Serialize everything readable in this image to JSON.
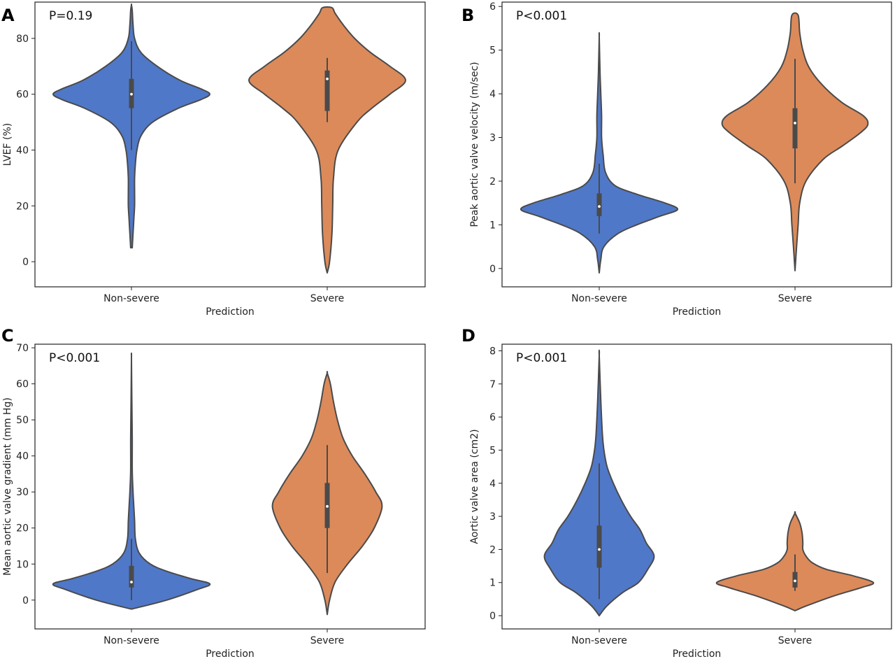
{
  "colors": {
    "non_severe": "#5078C8",
    "severe": "#DC8A5A",
    "edge": "#4A4A4A"
  },
  "chart_data": [
    {
      "type": "violin",
      "panel": "A",
      "pvalue": "P=0.19",
      "xlabel": "Prediction",
      "ylabel": "LVEF (%)",
      "ylim": [
        -9,
        93
      ],
      "yticks": [
        0,
        20,
        40,
        60,
        80
      ],
      "categories": [
        "Non-severe",
        "Severe"
      ],
      "series": [
        {
          "category": "Non-severe",
          "min": 5,
          "q1": 55,
          "median": 60,
          "q3": 65.5,
          "max": 92,
          "whisker_low": 40,
          "whisker_high": 79,
          "density": [
            [
              5,
              0.01
            ],
            [
              10,
              0.02
            ],
            [
              15,
              0.03
            ],
            [
              20,
              0.04
            ],
            [
              25,
              0.04
            ],
            [
              30,
              0.04
            ],
            [
              35,
              0.05
            ],
            [
              40,
              0.07
            ],
            [
              45,
              0.12
            ],
            [
              50,
              0.27
            ],
            [
              55,
              0.6
            ],
            [
              58,
              0.88
            ],
            [
              60,
              1.0
            ],
            [
              62,
              0.88
            ],
            [
              65,
              0.62
            ],
            [
              70,
              0.33
            ],
            [
              75,
              0.12
            ],
            [
              80,
              0.04
            ],
            [
              85,
              0.02
            ],
            [
              90,
              0.01
            ],
            [
              92,
              0.0
            ]
          ]
        },
        {
          "category": "Severe",
          "min": -4,
          "q1": 54,
          "median": 65.5,
          "q3": 68.5,
          "max": 91,
          "whisker_low": 50,
          "whisker_high": 73,
          "density": [
            [
              -4,
              0.0
            ],
            [
              0,
              0.03
            ],
            [
              10,
              0.06
            ],
            [
              20,
              0.07
            ],
            [
              30,
              0.08
            ],
            [
              40,
              0.14
            ],
            [
              50,
              0.38
            ],
            [
              55,
              0.57
            ],
            [
              60,
              0.8
            ],
            [
              65,
              1.0
            ],
            [
              70,
              0.8
            ],
            [
              75,
              0.55
            ],
            [
              80,
              0.35
            ],
            [
              85,
              0.2
            ],
            [
              89,
              0.1
            ],
            [
              91,
              0.06
            ]
          ]
        }
      ]
    },
    {
      "type": "violin",
      "panel": "B",
      "pvalue": "P<0.001",
      "xlabel": "Prediction",
      "ylabel": "Peak aortic valve velocity (m/sec)",
      "ylim": [
        -0.42,
        6.1
      ],
      "yticks": [
        0,
        1,
        2,
        3,
        4,
        5,
        6
      ],
      "categories": [
        "Non-severe",
        "Severe"
      ],
      "series": [
        {
          "category": "Non-severe",
          "min": -0.1,
          "q1": 1.2,
          "median": 1.42,
          "q3": 1.72,
          "max": 5.3,
          "whisker_low": 0.8,
          "whisker_high": 2.4,
          "density": [
            [
              -0.1,
              0.0
            ],
            [
              0.2,
              0.02
            ],
            [
              0.5,
              0.06
            ],
            [
              0.8,
              0.24
            ],
            [
              1.0,
              0.48
            ],
            [
              1.2,
              0.78
            ],
            [
              1.35,
              1.0
            ],
            [
              1.5,
              0.84
            ],
            [
              1.7,
              0.48
            ],
            [
              1.9,
              0.2
            ],
            [
              2.2,
              0.08
            ],
            [
              2.6,
              0.05
            ],
            [
              3.0,
              0.03
            ],
            [
              3.5,
              0.03
            ],
            [
              4.0,
              0.02
            ],
            [
              4.5,
              0.01
            ],
            [
              5.3,
              0.0
            ]
          ]
        },
        {
          "category": "Severe",
          "min": -0.05,
          "q1": 2.75,
          "median": 3.33,
          "q3": 3.67,
          "max": 5.8,
          "whisker_low": 1.95,
          "whisker_high": 4.8,
          "density": [
            [
              -0.05,
              0.0
            ],
            [
              0.5,
              0.02
            ],
            [
              1.0,
              0.04
            ],
            [
              1.5,
              0.06
            ],
            [
              2.0,
              0.14
            ],
            [
              2.5,
              0.36
            ],
            [
              2.8,
              0.6
            ],
            [
              3.1,
              0.83
            ],
            [
              3.3,
              0.93
            ],
            [
              3.5,
              0.87
            ],
            [
              3.8,
              0.6
            ],
            [
              4.2,
              0.35
            ],
            [
              4.6,
              0.18
            ],
            [
              5.0,
              0.1
            ],
            [
              5.4,
              0.06
            ],
            [
              5.8,
              0.04
            ]
          ]
        }
      ]
    },
    {
      "type": "violin",
      "panel": "C",
      "pvalue": "P<0.001",
      "xlabel": "Prediction",
      "ylabel": "Mean aortic valve gradient (mm Hg)",
      "ylim": [
        -8,
        71
      ],
      "yticks": [
        0,
        10,
        20,
        30,
        40,
        50,
        60,
        70
      ],
      "categories": [
        "Non-severe",
        "Severe"
      ],
      "series": [
        {
          "category": "Non-severe",
          "min": -2.5,
          "q1": 3.5,
          "median": 5,
          "q3": 9.5,
          "max": 67,
          "whisker_low": 0,
          "whisker_high": 17,
          "density": [
            [
              -2.5,
              0.0
            ],
            [
              0,
              0.45
            ],
            [
              3,
              0.85
            ],
            [
              4.5,
              1.0
            ],
            [
              6,
              0.75
            ],
            [
              8,
              0.45
            ],
            [
              10,
              0.24
            ],
            [
              13,
              0.1
            ],
            [
              17,
              0.05
            ],
            [
              22,
              0.04
            ],
            [
              26,
              0.03
            ],
            [
              30,
              0.02
            ],
            [
              36,
              0.01
            ],
            [
              45,
              0.01
            ],
            [
              55,
              0.005
            ],
            [
              67,
              0.0
            ]
          ]
        },
        {
          "category": "Severe",
          "min": -4,
          "q1": 20,
          "median": 26,
          "q3": 32.5,
          "max": 63,
          "whisker_low": 7.5,
          "whisker_high": 43,
          "density": [
            [
              -4,
              0.0
            ],
            [
              0,
              0.03
            ],
            [
              5,
              0.1
            ],
            [
              10,
              0.26
            ],
            [
              15,
              0.45
            ],
            [
              20,
              0.6
            ],
            [
              26,
              0.7
            ],
            [
              30,
              0.62
            ],
            [
              35,
              0.48
            ],
            [
              40,
              0.32
            ],
            [
              45,
              0.2
            ],
            [
              50,
              0.13
            ],
            [
              55,
              0.08
            ],
            [
              60,
              0.04
            ],
            [
              63,
              0.0
            ]
          ]
        }
      ]
    },
    {
      "type": "violin",
      "panel": "D",
      "pvalue": "P<0.001",
      "xlabel": "Prediction",
      "ylabel": "Aortic valve area (cm2)",
      "ylim": [
        -0.4,
        8.2
      ],
      "yticks": [
        0,
        1,
        2,
        3,
        4,
        5,
        6,
        7,
        8
      ],
      "categories": [
        "Non-severe",
        "Severe"
      ],
      "series": [
        {
          "category": "Non-severe",
          "min": 0,
          "q1": 1.45,
          "median": 2.0,
          "q3": 2.72,
          "max": 7.85,
          "whisker_low": 0.5,
          "whisker_high": 4.6,
          "density": [
            [
              0,
              0.0
            ],
            [
              0.3,
              0.1
            ],
            [
              0.7,
              0.3
            ],
            [
              1.0,
              0.5
            ],
            [
              1.4,
              0.62
            ],
            [
              1.8,
              0.7
            ],
            [
              2.2,
              0.6
            ],
            [
              2.6,
              0.52
            ],
            [
              3.0,
              0.4
            ],
            [
              3.5,
              0.28
            ],
            [
              4.0,
              0.18
            ],
            [
              4.5,
              0.1
            ],
            [
              5.0,
              0.06
            ],
            [
              5.5,
              0.04
            ],
            [
              6.5,
              0.02
            ],
            [
              7.85,
              0.0
            ]
          ]
        },
        {
          "category": "Severe",
          "min": 0.15,
          "q1": 0.85,
          "median": 1.05,
          "q3": 1.32,
          "max": 3.1,
          "whisker_low": 0.75,
          "whisker_high": 1.85,
          "density": [
            [
              0.15,
              0.0
            ],
            [
              0.3,
              0.15
            ],
            [
              0.6,
              0.5
            ],
            [
              0.85,
              0.85
            ],
            [
              1.0,
              1.0
            ],
            [
              1.2,
              0.75
            ],
            [
              1.4,
              0.4
            ],
            [
              1.6,
              0.22
            ],
            [
              1.8,
              0.14
            ],
            [
              2.0,
              0.1
            ],
            [
              2.2,
              0.1
            ],
            [
              2.5,
              0.09
            ],
            [
              2.8,
              0.06
            ],
            [
              3.1,
              0.0
            ]
          ]
        }
      ]
    }
  ]
}
